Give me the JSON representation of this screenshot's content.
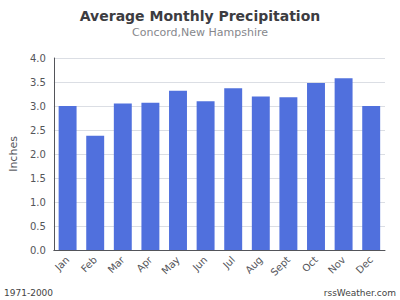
{
  "chart_data": {
    "type": "bar",
    "title": "Average Monthly Precipitation",
    "subtitle": "Concord,New Hampshire",
    "ylabel": "Inches",
    "annotations": [
      "1971-2000",
      "rssWeather.com"
    ],
    "categories": [
      "Jan",
      "Feb",
      "Mar",
      "Apr",
      "May",
      "Jun",
      "Jul",
      "Aug",
      "Sept",
      "Oct",
      "Nov",
      "Dec"
    ],
    "values": [
      3.0,
      2.38,
      3.05,
      3.07,
      3.32,
      3.1,
      3.37,
      3.2,
      3.18,
      3.48,
      3.58,
      3.0
    ],
    "ylim": [
      0.0,
      4.0
    ],
    "yticks": [
      {
        "value": 0,
        "label": "0.0"
      },
      0.5,
      {
        "value": 1,
        "label": "1.0"
      },
      1.5,
      {
        "value": 2,
        "label": "2.0"
      },
      2.5,
      {
        "value": 3,
        "label": "3.0"
      },
      3.5,
      {
        "value": 4,
        "label": "4.0"
      }
    ],
    "grid": true
  }
}
